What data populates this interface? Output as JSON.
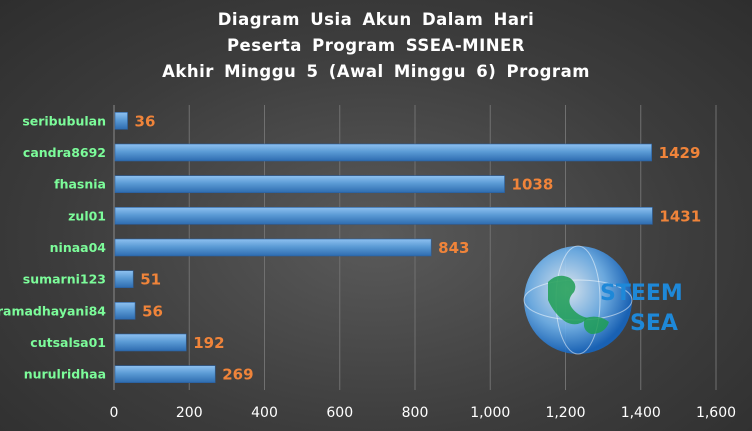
{
  "chart_data": {
    "type": "bar",
    "orientation": "horizontal",
    "title_lines": [
      "Diagram Usia Akun Dalam Hari",
      "Peserta Program SSEA-MINER",
      "Akhir Minggu 5 (Awal Minggu 6) Program"
    ],
    "categories": [
      "seribubulan",
      "candra8692",
      "fhasnia",
      "zul01",
      "ninaa04",
      "sumarni123",
      "ramadhayani84",
      "cutsalsa01",
      "nurulridhaa"
    ],
    "values": [
      36,
      1429,
      1038,
      1431,
      843,
      51,
      56,
      192,
      269
    ],
    "value_labels": [
      "36",
      "1429",
      "1038",
      "1431",
      "843",
      "51",
      "56",
      "192",
      "269"
    ],
    "xlim": [
      0,
      1600
    ],
    "x_ticks": [
      0,
      200,
      400,
      600,
      800,
      1000,
      1200,
      1400,
      1600
    ],
    "x_tick_labels": [
      "0",
      "200",
      "400",
      "600",
      "800",
      "1,000",
      "1,200",
      "1,400",
      "1,600"
    ],
    "grid": true,
    "xlabel": "",
    "ylabel": "",
    "colors": {
      "bar": "#5B9BD5",
      "bar_dark": "#2E6CB0",
      "category_text": "#7CFC9A",
      "value_text": "#F0843A",
      "grid": "#707070"
    }
  },
  "logo": {
    "line1": "STEEM",
    "line2": "SEA",
    "icon": "globe-icon"
  }
}
